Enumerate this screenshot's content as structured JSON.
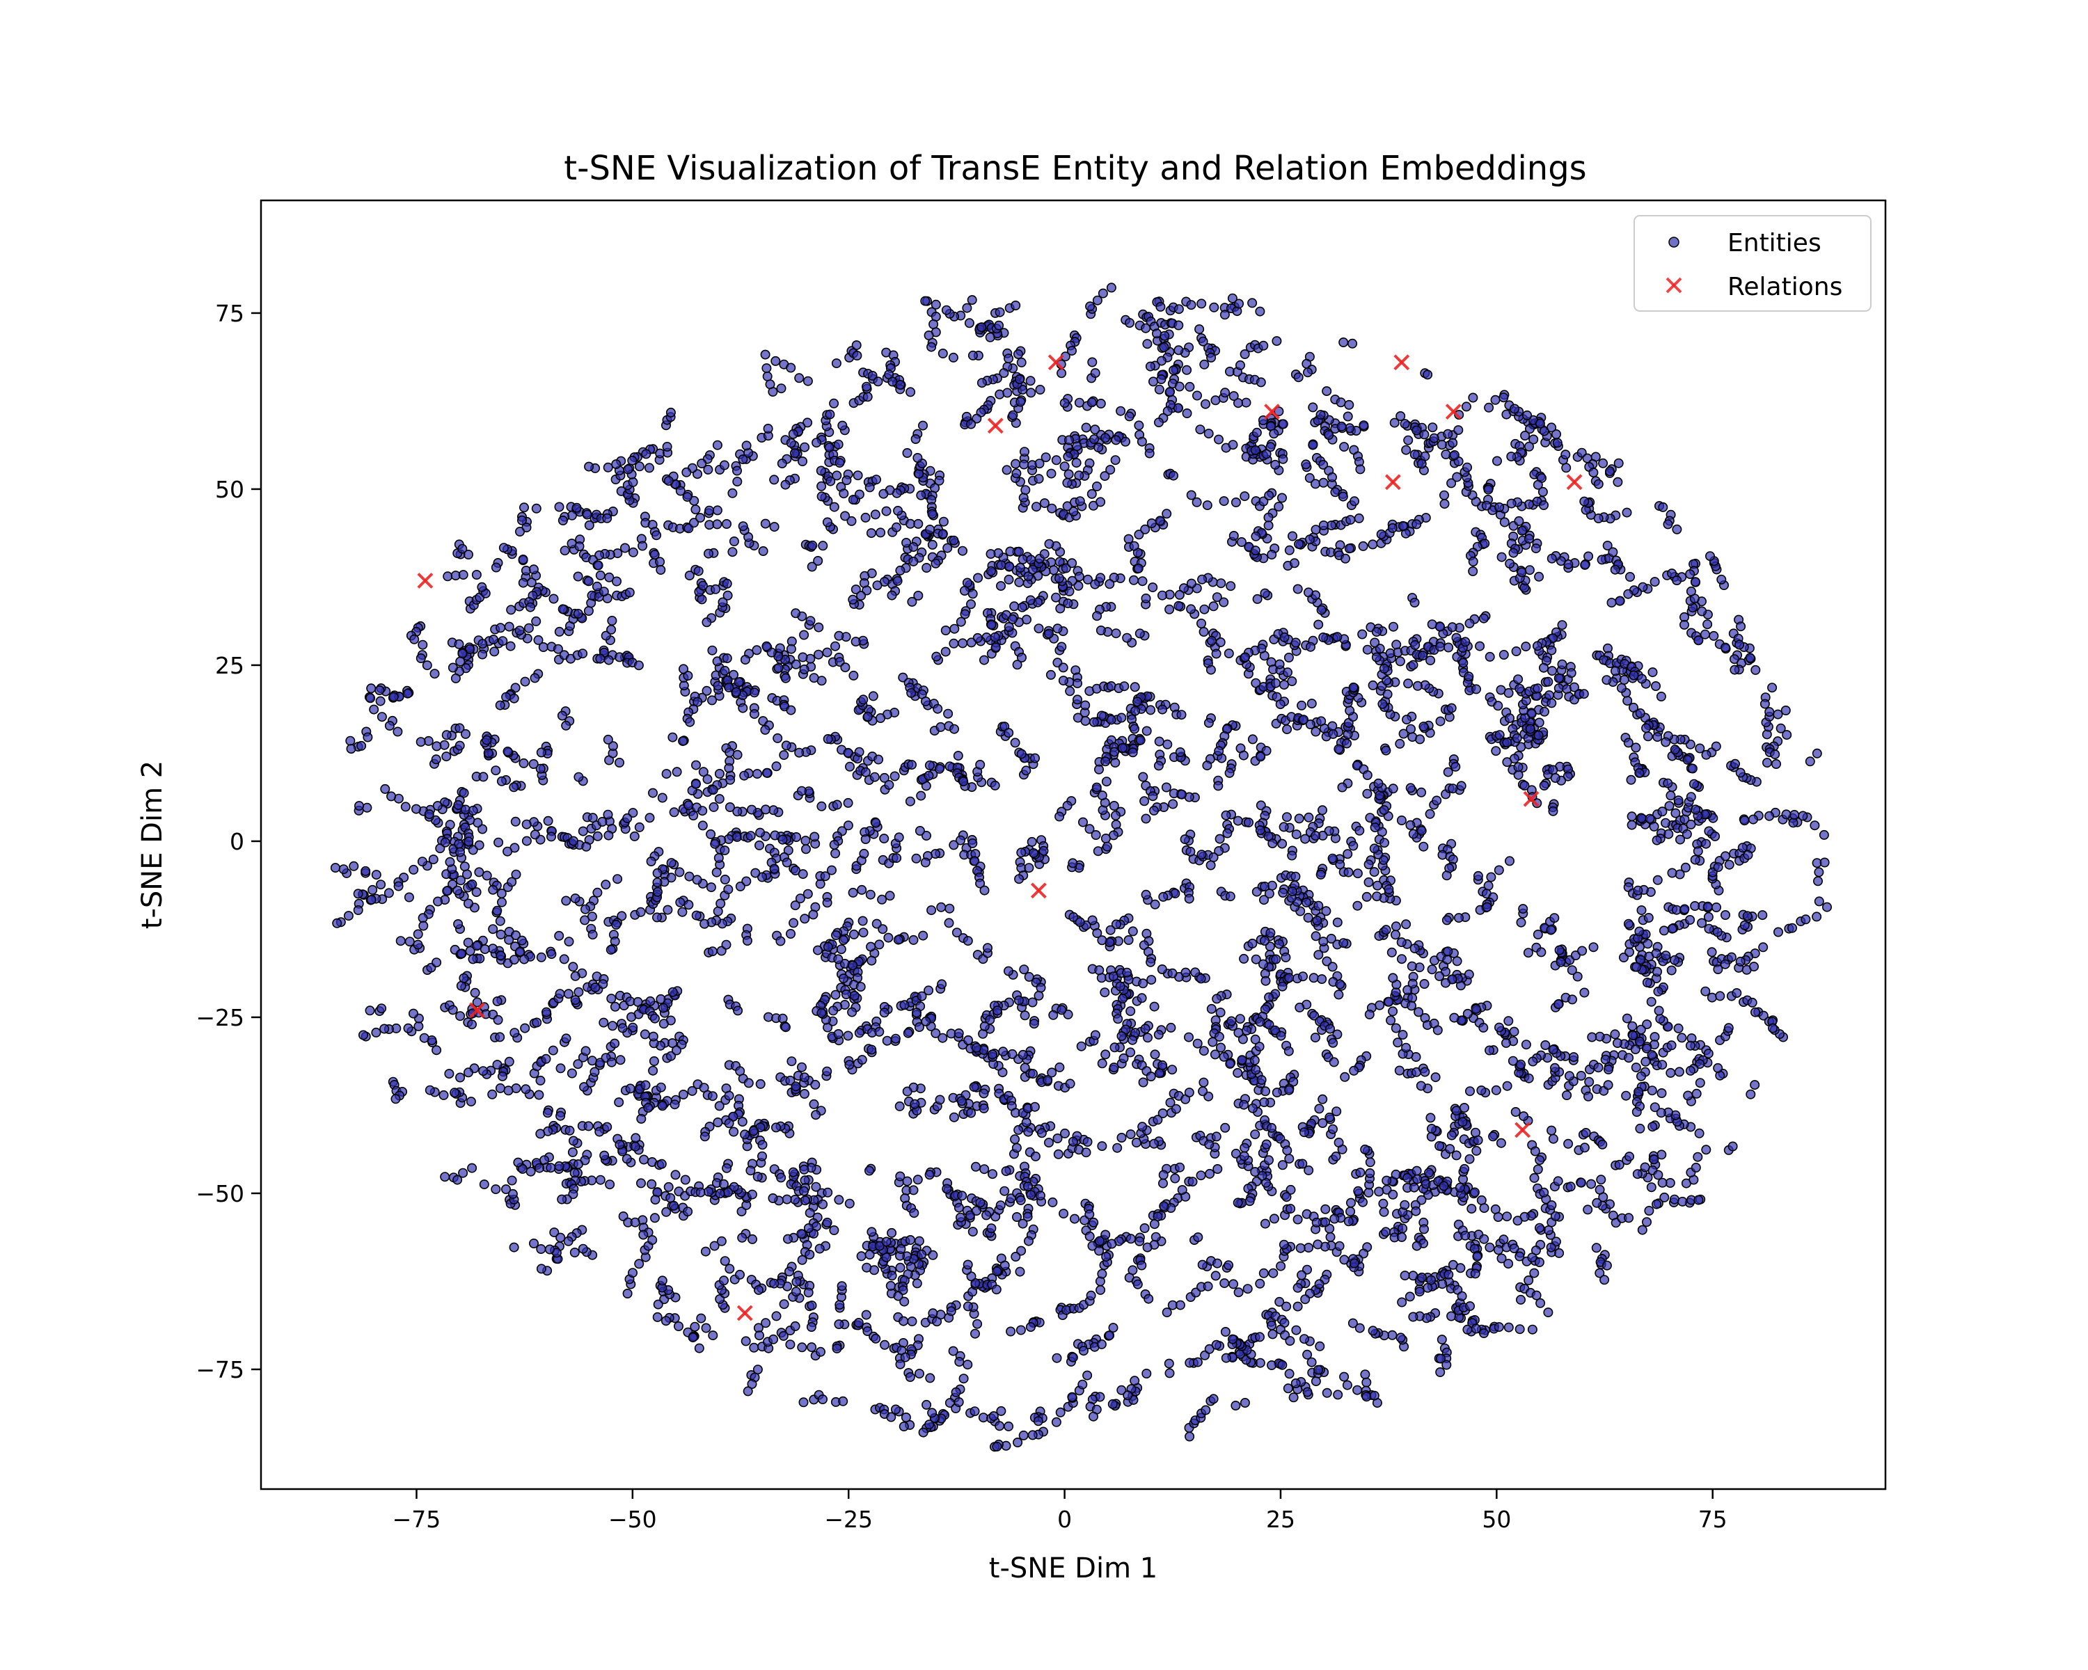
{
  "chart_data": {
    "type": "scatter",
    "title": "t-SNE Visualization of TransE Entity and Relation Embeddings",
    "xlabel": "t-SNE Dim 1",
    "ylabel": "t-SNE Dim 2",
    "xlim": [
      -93,
      95
    ],
    "ylim": [
      -92,
      91
    ],
    "xticks": [
      -75,
      -50,
      -25,
      0,
      25,
      50,
      75
    ],
    "yticks": [
      -75,
      -50,
      -25,
      0,
      25,
      50,
      75
    ],
    "xtick_labels": [
      "−75",
      "−50",
      "−25",
      "0",
      "25",
      "50",
      "75"
    ],
    "ytick_labels": [
      "−75",
      "−50",
      "−25",
      "0",
      "25",
      "50",
      "75"
    ],
    "grid": false,
    "legend": {
      "position": "upper-right"
    },
    "series": [
      {
        "name": "Entities",
        "marker": "circle",
        "color": "#3333b2",
        "edgecolor": "#000000",
        "point_count": 6000,
        "distribution": {
          "center": [
            2,
            -4
          ],
          "x_radius": 86,
          "y_radius": 82,
          "cluster_seed": 7
        }
      },
      {
        "name": "Relations",
        "marker": "x",
        "color": "#ee2222",
        "points": [
          [
            -74,
            37
          ],
          [
            -68,
            -24
          ],
          [
            -37,
            -67
          ],
          [
            -8,
            59
          ],
          [
            -1,
            68
          ],
          [
            -3,
            -7
          ],
          [
            24,
            61
          ],
          [
            38,
            51
          ],
          [
            39,
            68
          ],
          [
            45,
            61
          ],
          [
            54,
            6
          ],
          [
            53,
            -41
          ],
          [
            59,
            51
          ]
        ]
      }
    ]
  }
}
